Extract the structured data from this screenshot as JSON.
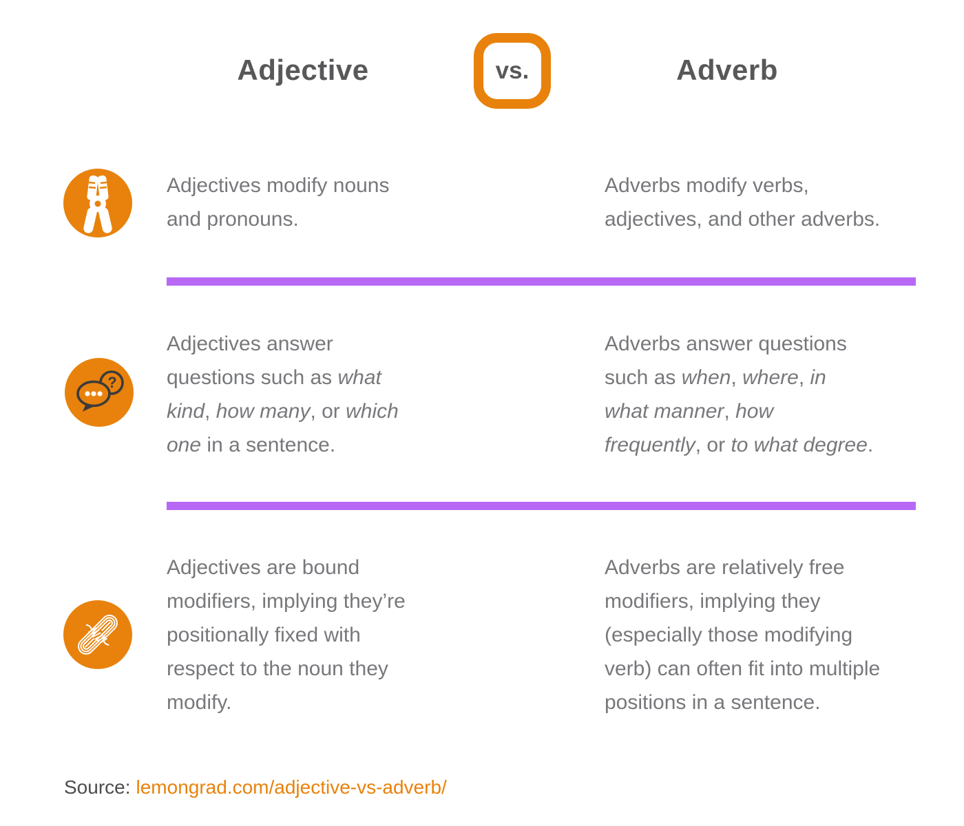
{
  "header": {
    "left_title": "Adjective",
    "vs_label": "vs.",
    "right_title": "Adverb"
  },
  "colors": {
    "orange": "#E8820C",
    "purple": "#B768F5",
    "heading_gray": "#58585A",
    "body_gray": "#77787B",
    "source_gray": "#4D4D4F",
    "icon_outline": "#3B3B3B"
  },
  "rows": [
    {
      "icon": "pliers-icon",
      "adjective": [
        {
          "t": "Adjectives modify nouns\nand pronouns."
        }
      ],
      "adverb": [
        {
          "t": "Adverbs modify verbs,\nadjectives, and other adverbs."
        }
      ]
    },
    {
      "icon": "question-bubbles-icon",
      "adjective": [
        {
          "t": "Adjectives answer\nquestions such as "
        },
        {
          "t": "what\nkind",
          "i": true
        },
        {
          "t": ", "
        },
        {
          "t": "how many",
          "i": true
        },
        {
          "t": ", or "
        },
        {
          "t": "which\none",
          "i": true
        },
        {
          "t": " in a sentence."
        }
      ],
      "adverb": [
        {
          "t": "Adverbs answer questions\nsuch as "
        },
        {
          "t": "when",
          "i": true
        },
        {
          "t": ", "
        },
        {
          "t": "where",
          "i": true
        },
        {
          "t": ", "
        },
        {
          "t": "in\nwhat manner",
          "i": true
        },
        {
          "t": ", "
        },
        {
          "t": "how\nfrequently",
          "i": true
        },
        {
          "t": ", or "
        },
        {
          "t": "to what degree",
          "i": true
        },
        {
          "t": "."
        }
      ]
    },
    {
      "icon": "rope-icon",
      "adjective": [
        {
          "t": "Adjectives are bound\nmodifiers, implying they’re\npositionally fixed with\nrespect to the noun they\nmodify."
        }
      ],
      "adverb": [
        {
          "t": "Adverbs are relatively free\nmodifiers, implying they\n(especially those modifying\nverb) can often fit into multiple\npositions in a sentence."
        }
      ]
    }
  ],
  "footer": {
    "source_label": "Source:",
    "source_link": "lemongrad.com/adjective-vs-adverb/"
  }
}
